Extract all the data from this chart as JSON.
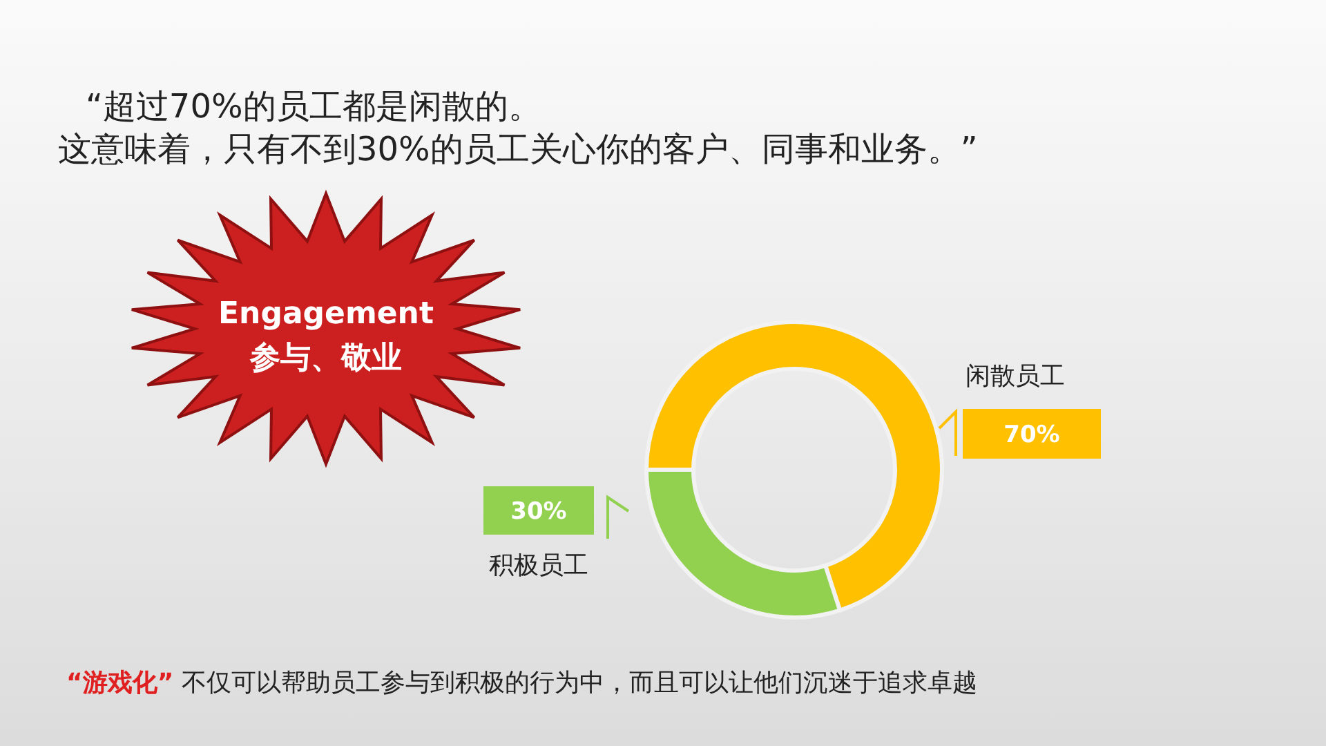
{
  "chart_data": {
    "type": "donut",
    "title": "“超过70%的员工都是闲散的。",
    "subtitle": "这意味着，只有不到30%的员工关心你的客户、同事和业务。”",
    "categories": [
      "闲散员工",
      "积极员工"
    ],
    "values": [
      70,
      30
    ],
    "colors": [
      "#ffc000",
      "#92d050"
    ],
    "value_labels": [
      "70%",
      "30%"
    ],
    "annotations": [
      "Engagement",
      "参与、敬业",
      "**“游戏化”** 不仅可以帮助员工参与到积极的行为中，而且可以让他们沉迷于追求卓越"
    ]
  }
}
